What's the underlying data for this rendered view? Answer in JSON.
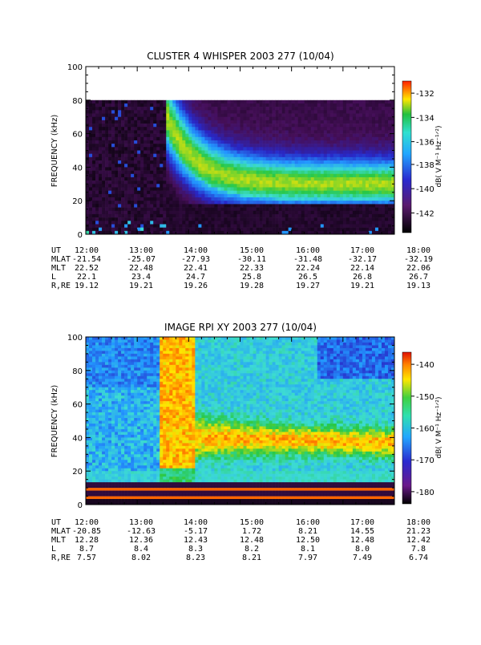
{
  "charts": [
    {
      "title": "CLUSTER 4 WHISPER 2003 277 (10/04)",
      "ylabel": "FREQUENCY (kHz)",
      "colorbar_label": "dB( V M⁻¹ Hz⁻¹ᐟ²)",
      "colorbar_ticks": [
        "-132",
        "-134",
        "-136",
        "-138",
        "-140",
        "-142"
      ],
      "yticks": [
        "0",
        "20",
        "40",
        "60",
        "80",
        "100"
      ],
      "ephem": {
        "labels": [
          "UT",
          "MLAT",
          "MLT",
          "L",
          "R,RE"
        ],
        "rows": [
          [
            "12:00",
            "13:00",
            "14:00",
            "15:00",
            "16:00",
            "17:00",
            "18:00"
          ],
          [
            "-21.54",
            "-25.07",
            "-27.93",
            "-30.11",
            "-31.48",
            "-32.17",
            "-32.19"
          ],
          [
            "22.52",
            "22.48",
            "22.41",
            "22.33",
            "22.24",
            "22.14",
            "22.06"
          ],
          [
            "22.1",
            "23.4",
            "24.7",
            "25.8",
            "26.5",
            "26.8",
            "26.7"
          ],
          [
            "19.12",
            "19.21",
            "19.26",
            "19.28",
            "19.27",
            "19.21",
            "19.13"
          ]
        ]
      }
    },
    {
      "title": "IMAGE RPI XY 2003 277 (10/04)",
      "ylabel": "FREQUENCY (kHz)",
      "colorbar_label": "dB( V M⁻¹ Hz⁻¹ᐟ²)",
      "colorbar_ticks": [
        "-140",
        "-150",
        "-160",
        "-170",
        "-180"
      ],
      "yticks": [
        "0",
        "20",
        "40",
        "60",
        "80",
        "100"
      ],
      "ephem": {
        "labels": [
          "UT",
          "MLAT",
          "MLT",
          "L",
          "R,RE"
        ],
        "rows": [
          [
            "12:00",
            "13:00",
            "14:00",
            "15:00",
            "16:00",
            "17:00",
            "18:00"
          ],
          [
            "-20.85",
            "-12.63",
            "-5.17",
            "1.72",
            "8.21",
            "14.55",
            "21.23"
          ],
          [
            "12.28",
            "12.36",
            "12.43",
            "12.48",
            "12.50",
            "12.48",
            "12.42"
          ],
          [
            "8.7",
            "8.4",
            "8.3",
            "8.2",
            "8.1",
            "8.0",
            "7.8"
          ],
          [
            "7.57",
            "8.02",
            "8.23",
            "8.21",
            "7.97",
            "7.49",
            "6.74"
          ]
        ]
      }
    }
  ],
  "chart_data": [
    {
      "type": "heatmap",
      "title": "CLUSTER 4 WHISPER 2003 277 (10/04)",
      "xlabel": "UT",
      "ylabel": "FREQUENCY (kHz)",
      "xlim": [
        "12:00",
        "18:00"
      ],
      "ylim": [
        0,
        100
      ],
      "data_frequency_range_khz": [
        0,
        80
      ],
      "colorbar": {
        "label": "dB( V M-1 Hz-1/2)",
        "range": [
          -143,
          -131
        ],
        "colormap": "black-purple-blue-cyan-green-yellow-red"
      },
      "features": [
        {
          "name": "onset",
          "x_ut": "13:35",
          "description": "broadband emission appears, cutoff near 80 kHz"
        },
        {
          "name": "peak band",
          "frequency_khz_at_14:00": 50,
          "frequency_khz_at_18:00": 30
        }
      ]
    },
    {
      "type": "heatmap",
      "title": "IMAGE RPI XY 2003 277 (10/04)",
      "xlabel": "UT",
      "ylabel": "FREQUENCY (kHz)",
      "xlim": [
        "12:00",
        "18:00"
      ],
      "ylim": [
        0,
        100
      ],
      "colorbar": {
        "label": "dB( V M-1 Hz-1/2)",
        "range": [
          -185,
          -135
        ],
        "colormap": "black-purple-blue-cyan-green-yellow-red"
      },
      "features": [
        {
          "name": "onset",
          "x_ut": "13:35",
          "description": "intense emission from 20 to 100 kHz"
        },
        {
          "name": "peak band",
          "frequency_khz_at_15:00": 40,
          "frequency_khz_at_17:00": 38
        }
      ]
    }
  ]
}
